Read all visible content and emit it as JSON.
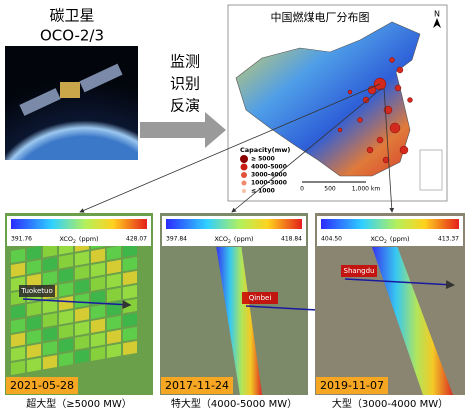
{
  "satellite": {
    "name": "碳卫星",
    "mission": "OCO-2/3"
  },
  "process": [
    "监测",
    "识别",
    "反演"
  ],
  "map": {
    "title": "中国燃煤电厂分布图",
    "north": "N",
    "legend": {
      "title": "Capacity(mw)",
      "items": [
        "≥ 5000",
        "4000-5000",
        "3000-4000",
        "1000-3000",
        "≤ 1000"
      ]
    },
    "scale": [
      "0",
      "500",
      "1,000 km"
    ]
  },
  "colorbar_label": {
    "main": "XCO",
    "sub": "2",
    "unit": "(ppm)"
  },
  "panels": [
    {
      "min": "391.76",
      "max": "428.07",
      "site": "Tuoketuo",
      "date": "2021-05-28",
      "caption": "超大型（≥5000 MW）"
    },
    {
      "min": "397.84",
      "max": "418.84",
      "site": "Qinbei",
      "date": "2017-11-24",
      "caption": "特大型（4000-5000 MW）"
    },
    {
      "min": "404.50",
      "max": "413.37",
      "site": "Shangdu",
      "date": "2019-11-07",
      "caption": "大型（3000-4000 MW）"
    }
  ]
}
